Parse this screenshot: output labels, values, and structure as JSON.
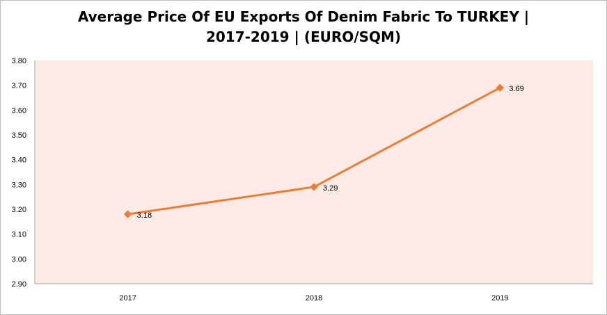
{
  "chart_data": {
    "type": "line",
    "title_lines": [
      "Average Price Of EU Exports Of Denim Fabric To TURKEY |",
      "2017-2019  | (EURO/SQM)"
    ],
    "categories": [
      "2017",
      "2018",
      "2019"
    ],
    "series": [
      {
        "values": [
          3.18,
          3.29,
          3.69
        ],
        "data_labels": [
          "3.18",
          "3.29",
          "3.69"
        ],
        "color": "#ed7d31",
        "marker": "diamond"
      }
    ],
    "ylim": [
      2.9,
      3.8
    ],
    "yticks": [
      "2.90",
      "3.00",
      "3.10",
      "3.20",
      "3.30",
      "3.40",
      "3.50",
      "3.60",
      "3.70",
      "3.80"
    ],
    "plot_background": "#fbeae5",
    "grid": false,
    "legend": "none",
    "xlabel": "",
    "ylabel": ""
  }
}
